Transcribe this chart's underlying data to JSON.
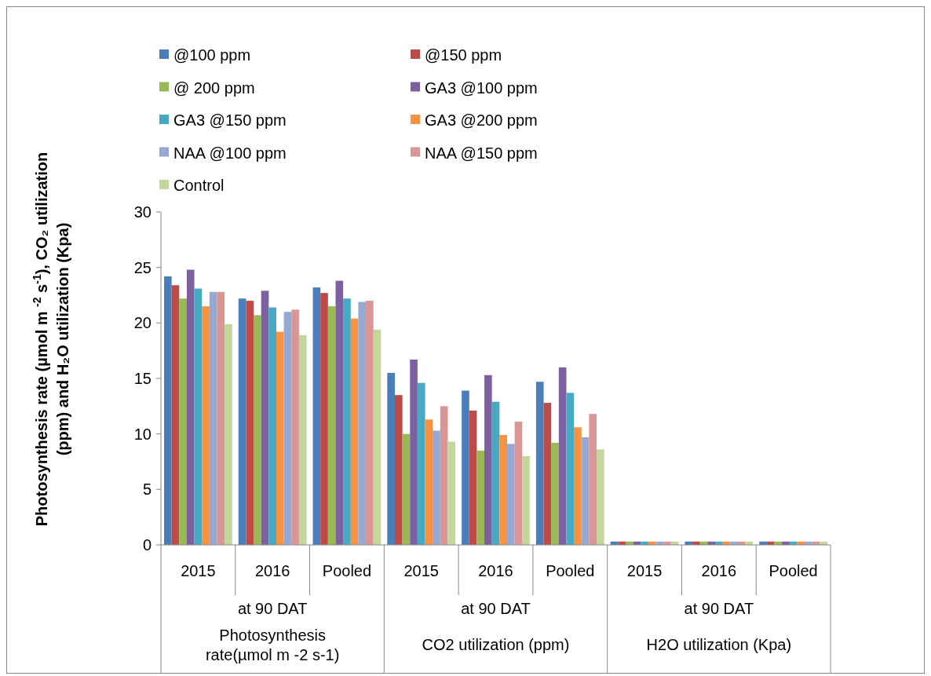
{
  "chart_data": {
    "type": "bar",
    "ylabel": "Photosynthesis rate (µmol m $^{-2}$ s$^{-1}$), CO₂ utilization (ppm) and H₂O utilization (Kpa)",
    "categories": [
      "2015",
      "2016",
      "Pooled",
      "2015",
      "2016",
      "Pooled",
      "2015",
      "2016",
      "Pooled"
    ],
    "annotations": [
      "at 90 DAT",
      "at 90 DAT",
      "at 90 DAT",
      "Photosynthesis rate(µmol m -2 s-1)",
      "CO2 utilization (ppm)",
      "H2O utilization (Kpa)"
    ],
    "ylim": [
      0,
      30
    ],
    "yticks": [
      0,
      5,
      10,
      15,
      20,
      25,
      30
    ],
    "grid": false,
    "legend": "top left",
    "series": [
      {
        "name": "@100 ppm",
        "color": "#4a7ebb",
        "values": [
          24.2,
          22.2,
          23.2,
          15.5,
          13.9,
          14.7,
          0.3,
          0.3,
          0.3
        ]
      },
      {
        "name": "@150 ppm",
        "color": "#be4b48",
        "values": [
          23.4,
          22.0,
          22.7,
          13.5,
          12.1,
          12.8,
          0.3,
          0.3,
          0.3
        ]
      },
      {
        "name": "@ 200 ppm",
        "color": "#98b954",
        "values": [
          22.2,
          20.7,
          21.5,
          10.0,
          8.5,
          9.2,
          0.3,
          0.3,
          0.3
        ]
      },
      {
        "name": "GA3 @100 ppm",
        "color": "#7d60a0",
        "values": [
          24.8,
          22.9,
          23.8,
          16.7,
          15.3,
          16.0,
          0.3,
          0.3,
          0.3
        ]
      },
      {
        "name": "GA3 @150 ppm",
        "color": "#46aac5",
        "values": [
          23.1,
          21.4,
          22.2,
          14.6,
          12.9,
          13.7,
          0.3,
          0.3,
          0.3
        ]
      },
      {
        "name": "GA3 @200 ppm",
        "color": "#f69240",
        "values": [
          21.5,
          19.2,
          20.4,
          11.3,
          9.9,
          10.6,
          0.3,
          0.3,
          0.3
        ]
      },
      {
        "name": "NAA @100 ppm",
        "color": "#95a9d3",
        "values": [
          22.8,
          21.0,
          21.9,
          10.3,
          9.1,
          9.7,
          0.3,
          0.3,
          0.3
        ]
      },
      {
        "name": "NAA @150 ppm",
        "color": "#d99694",
        "values": [
          22.8,
          21.2,
          22.0,
          12.5,
          11.1,
          11.8,
          0.3,
          0.3,
          0.3
        ]
      },
      {
        "name": "Control",
        "color": "#c3d69b",
        "values": [
          19.9,
          18.9,
          19.4,
          9.3,
          8.0,
          8.6,
          0.3,
          0.3,
          0.3
        ]
      }
    ]
  }
}
